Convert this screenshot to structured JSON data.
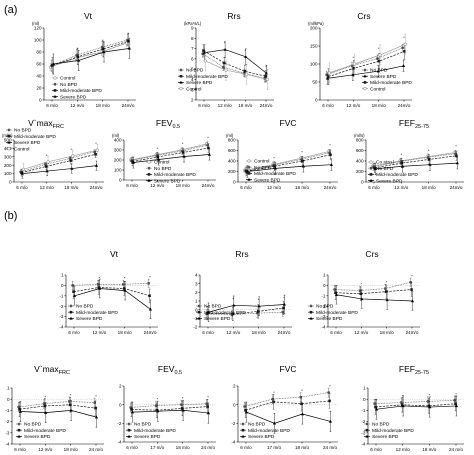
{
  "panel_labels": [
    "(a)",
    "(b)"
  ],
  "x_tick_labels": [
    "6 m/o",
    "12 m/o",
    "18 m/o",
    "24m/o"
  ],
  "group_names": [
    "Control",
    "No BPD",
    "Mild-moderate BPD",
    "Severe BPD"
  ],
  "colors": {
    "control": "#9a9a9a",
    "no_bpd": "#555555",
    "mild": "#1a1a1a",
    "severe": "#000000"
  },
  "chart_data": [
    {
      "id": "a-vt",
      "type": "line",
      "title": "Vt",
      "unit": "(ml)",
      "ylim": [
        0,
        120
      ],
      "yticks": [
        "0",
        "20",
        "40",
        "60",
        "80",
        "100",
        "120"
      ],
      "x": [
        "6 m/o",
        "12 m/o",
        "18 m/o",
        "24m/o"
      ],
      "series": [
        {
          "name": "Control",
          "values": [
            55,
            70,
            80,
            95
          ]
        },
        {
          "name": "No BPD",
          "values": [
            57,
            75,
            88,
            100
          ]
        },
        {
          "name": "Mild-moderate BPD",
          "values": [
            58,
            72,
            85,
            98
          ]
        },
        {
          "name": "Severe BPD",
          "values": [
            60,
            66,
            80,
            86
          ]
        }
      ]
    },
    {
      "id": "a-rrs",
      "type": "line",
      "title": "Rrs",
      "unit": "(kPa*s/L)",
      "ylim": [
        2,
        9
      ],
      "yticks": [
        "2",
        "3",
        "4",
        "5",
        "6",
        "7",
        "8",
        "9"
      ],
      "x": [
        "6 m/o",
        "12 m/o",
        "18 m/o",
        "24m/o"
      ],
      "series": [
        {
          "name": "No BPD",
          "values": [
            6.5,
            5.2,
            4.6,
            4.1
          ]
        },
        {
          "name": "Mild-moderate BPD",
          "values": [
            6.8,
            5.6,
            4.8,
            4.3
          ]
        },
        {
          "name": "Severe BPD",
          "values": [
            6.6,
            6.9,
            6.2,
            4.6
          ]
        },
        {
          "name": "Control",
          "values": [
            5.8,
            4.9,
            4.5,
            4.0
          ]
        }
      ]
    },
    {
      "id": "a-crs",
      "type": "line",
      "title": "Crs",
      "unit": "(ml/kPa)",
      "ylim": [
        0,
        200
      ],
      "yticks": [
        "0",
        "50",
        "100",
        "150",
        "200"
      ],
      "x": [
        "6 m/o",
        "12 m/o",
        "18 m/o",
        "24m/o"
      ],
      "series": [
        {
          "name": "No BPD",
          "values": [
            70,
            95,
            115,
            145
          ]
        },
        {
          "name": "Severe BPD",
          "values": [
            60,
            70,
            80,
            95
          ]
        },
        {
          "name": "Mild-moderate BPD",
          "values": [
            65,
            88,
            108,
            135
          ]
        },
        {
          "name": "Control",
          "values": [
            75,
            100,
            125,
            155
          ]
        }
      ]
    },
    {
      "id": "a-vmax",
      "type": "line",
      "title": "V`maxFRC",
      "title_main": "V`max",
      "title_sub": "FRC",
      "unit": "(ml/s)",
      "ylim": [
        0,
        500
      ],
      "yticks": [
        "0",
        "100",
        "200",
        "300",
        "400",
        "500"
      ],
      "x": [
        "6 m/o",
        "12 m/o",
        "18 m/o",
        "24m/o"
      ],
      "series": [
        {
          "name": "No BPD",
          "values": [
            120,
            210,
            280,
            360
          ]
        },
        {
          "name": "Mild-moderate BPD",
          "values": [
            110,
            185,
            255,
            330
          ]
        },
        {
          "name": "Severe BPD",
          "values": [
            100,
            130,
            160,
            195
          ]
        },
        {
          "name": "Control",
          "values": [
            150,
            240,
            310,
            380
          ]
        }
      ]
    },
    {
      "id": "a-fev",
      "type": "line",
      "title": "FEV0.5",
      "title_main": "FEV",
      "title_sub": "0.5",
      "unit": "(ml)",
      "ylim": [
        0,
        400
      ],
      "yticks": [
        "0",
        "100",
        "200",
        "300",
        "400"
      ],
      "x": [
        "6 m/o",
        "12 m/o",
        "18 m/o",
        "24m/o"
      ],
      "series": [
        {
          "name": "Control",
          "values": [
            200,
            250,
            300,
            360
          ]
        },
        {
          "name": "No BPD",
          "values": [
            195,
            245,
            290,
            350
          ]
        },
        {
          "name": "Mild-moderate BPD",
          "values": [
            185,
            230,
            275,
            320
          ]
        },
        {
          "name": "Severe BPD",
          "values": [
            175,
            205,
            235,
            255
          ]
        }
      ]
    },
    {
      "id": "a-fvc",
      "type": "line",
      "title": "FVC",
      "unit": "(ml)",
      "ylim": [
        0,
        800
      ],
      "yticks": [
        "0",
        "200",
        "400",
        "600",
        "800"
      ],
      "x": [
        "6 m/o",
        "12 m/o",
        "18 m/o",
        "24m/o"
      ],
      "series": [
        {
          "name": "Control",
          "values": [
            220,
            330,
            450,
            580
          ]
        },
        {
          "name": "No BPD",
          "values": [
            215,
            320,
            430,
            560
          ]
        },
        {
          "name": "Mild-moderate BPD",
          "values": [
            205,
            300,
            400,
            520
          ]
        },
        {
          "name": "Severe BPD",
          "values": [
            200,
            260,
            300,
            330
          ]
        }
      ]
    },
    {
      "id": "a-fef",
      "type": "line",
      "title": "FEF25-75",
      "title_main": "FEF",
      "title_sub": "25-75",
      "unit": "(ml/s)",
      "ylim": [
        0,
        800
      ],
      "yticks": [
        "0",
        "200",
        "400",
        "600",
        "800"
      ],
      "x": [
        "6 m/o",
        "12 m/o",
        "18 m/o",
        "24m/o"
      ],
      "series": [
        {
          "name": "Co ntro l",
          "values": [
            300,
            400,
            480,
            560
          ]
        },
        {
          "name": "No BPD",
          "values": [
            290,
            390,
            470,
            540
          ]
        },
        {
          "name": "Mild-moderate BPD",
          "values": [
            270,
            360,
            430,
            500
          ]
        },
        {
          "name": "Severe BPD",
          "values": [
            250,
            300,
            330,
            360
          ]
        }
      ]
    },
    {
      "id": "b-vt",
      "type": "line",
      "title": "Vt",
      "ylim": [
        -4,
        1
      ],
      "yticks": [
        "1",
        "0",
        "-1",
        "-2",
        "-3",
        "-4"
      ],
      "x": [
        "6 m/o",
        "12 m/o",
        "18 m/o",
        "24m/o"
      ],
      "series": [
        {
          "name": "No BPD",
          "values": [
            0.0,
            0.1,
            0.1,
            0.2
          ]
        },
        {
          "name": "Mild-moderate BPD",
          "values": [
            -0.6,
            -0.2,
            -0.3,
            -1.0
          ]
        },
        {
          "name": "Severe BPD",
          "values": [
            -1.0,
            -0.3,
            -0.5,
            -2.3
          ]
        }
      ]
    },
    {
      "id": "b-rrs",
      "type": "line",
      "title": "Rrs",
      "ylim": [
        -2,
        4
      ],
      "yticks": [
        "4",
        "3",
        "2",
        "1",
        "0",
        "-1",
        "-2"
      ],
      "x": [
        "6 m/o",
        "12 m/o",
        "18 m/o",
        "24m/o"
      ],
      "series": [
        {
          "name": "No BPD",
          "values": [
            -0.5,
            -0.6,
            -0.4,
            -0.3
          ]
        },
        {
          "name": "Mild-moderate BPD",
          "values": [
            -0.4,
            -0.5,
            -0.2,
            0.2
          ]
        },
        {
          "name": "Severe BPD",
          "values": [
            -0.3,
            0.5,
            0.4,
            0.6
          ]
        }
      ]
    },
    {
      "id": "b-crs",
      "type": "line",
      "title": "Crs",
      "ylim": [
        -4,
        1
      ],
      "yticks": [
        "1",
        "0",
        "-1",
        "-2",
        "-3",
        "-4"
      ],
      "x": [
        "6 m/o",
        "12 m/o",
        "18 m/o",
        "24m/o"
      ],
      "series": [
        {
          "name": "No BPD",
          "values": [
            -0.4,
            -0.5,
            -0.3,
            0.3
          ]
        },
        {
          "name": "Mild-moderate BPD",
          "values": [
            -0.7,
            -0.8,
            -0.6,
            -0.4
          ]
        },
        {
          "name": "Severe BPD",
          "values": [
            -0.9,
            -1.3,
            -1.4,
            -1.5
          ]
        }
      ]
    },
    {
      "id": "b-vmax",
      "type": "line",
      "title": "V`maxFRC",
      "title_main": "V`max",
      "title_sub": "FRC",
      "ylim": [
        -4,
        1
      ],
      "yticks": [
        "1",
        "0",
        "-1",
        "-2",
        "-3",
        "-4"
      ],
      "x": [
        "6 m/o",
        "12 m/o",
        "18 m/o",
        "24 m/o"
      ],
      "series": [
        {
          "name": "No BPD",
          "values": [
            -0.7,
            -0.4,
            -0.2,
            -0.3
          ]
        },
        {
          "name": "Mild-moderate BPD",
          "values": [
            -0.9,
            -0.6,
            -0.5,
            -0.8
          ]
        },
        {
          "name": "Severe BPD",
          "values": [
            -1.1,
            -1.2,
            -1.0,
            -1.6
          ]
        }
      ]
    },
    {
      "id": "b-fev",
      "type": "line",
      "title": "FEV0.5",
      "title_main": "FEV",
      "title_sub": "0.5",
      "ylim": [
        -4,
        2
      ],
      "yticks": [
        "2",
        "0",
        "-2",
        "-4"
      ],
      "x": [
        "6 m/o",
        "17 m/o",
        "18 m/o",
        "24 m/o"
      ],
      "series": [
        {
          "name": "No BPD",
          "values": [
            -0.3,
            -0.1,
            0.0,
            0.1
          ]
        },
        {
          "name": "Mild-moderate BPD",
          "values": [
            -0.5,
            -0.6,
            -0.4,
            -0.2
          ]
        },
        {
          "name": "Severe BPD",
          "values": [
            -0.8,
            -0.7,
            -0.6,
            -0.9
          ]
        }
      ]
    },
    {
      "id": "b-fvc",
      "type": "line",
      "title": "FVC",
      "ylim": [
        -4,
        2
      ],
      "yticks": [
        "2",
        "0",
        "-2",
        "-4"
      ],
      "x": [
        "6 m/o",
        "17 m/o",
        "18 m/o",
        "24 m/o"
      ],
      "series": [
        {
          "name": "No BPD",
          "values": [
            -0.2,
            0.6,
            0.8,
            1.3
          ]
        },
        {
          "name": "Mild-moderate BPD",
          "values": [
            -0.6,
            0.3,
            0.1,
            0.4
          ]
        },
        {
          "name": "Severe BPD",
          "values": [
            -0.8,
            -2.0,
            -1.0,
            -1.8
          ]
        }
      ]
    },
    {
      "id": "b-fef",
      "type": "line",
      "title": "FEF25-75",
      "title_main": "FEF",
      "title_sub": "25-75",
      "ylim": [
        -4,
        1
      ],
      "yticks": [
        "1",
        "0",
        "-1",
        "-2",
        "-3",
        "-4"
      ],
      "x": [
        "6 m/o",
        "12 m/o",
        "18 m/o",
        "24 m/o"
      ],
      "series": [
        {
          "name": "No BPD",
          "values": [
            -0.4,
            -0.3,
            -0.2,
            -0.1
          ]
        },
        {
          "name": "Mild-moderate BPD",
          "values": [
            -0.7,
            -0.5,
            -0.6,
            -0.4
          ]
        },
        {
          "name": "Severe BPD",
          "values": [
            -0.9,
            -0.6,
            -0.7,
            -0.6
          ]
        }
      ]
    }
  ]
}
